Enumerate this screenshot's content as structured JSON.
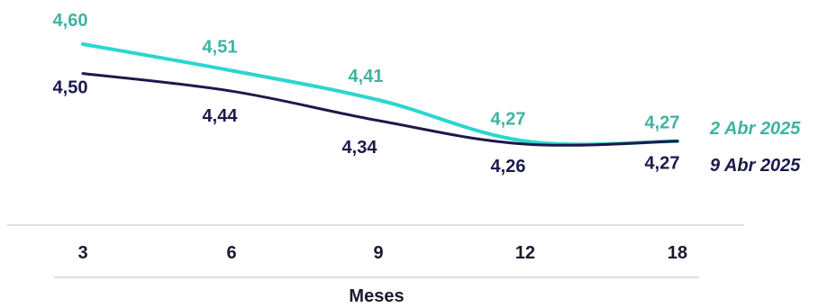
{
  "chart_data": {
    "type": "line",
    "categories": [
      "3",
      "6",
      "9",
      "12",
      "18"
    ],
    "xlabel": "Meses",
    "ylabel": "",
    "grid": false,
    "legend_placement": "right",
    "series": [
      {
        "name": "2 Abr 2025",
        "color": "#2bd6cf",
        "label_color": "#3fb3a0",
        "values": [
          4.6,
          4.51,
          4.41,
          4.27,
          4.27
        ],
        "labels": [
          "4,60",
          "4,51",
          "4,41",
          "4,27",
          "4,27"
        ]
      },
      {
        "name": "9 Abr 2025",
        "color": "#1c1a4a",
        "label_color": "#1c1a4a",
        "values": [
          4.5,
          4.44,
          4.34,
          4.26,
          4.27
        ],
        "labels": [
          "4,50",
          "4,44",
          "4,34",
          "4,26",
          "4,27"
        ]
      }
    ]
  }
}
